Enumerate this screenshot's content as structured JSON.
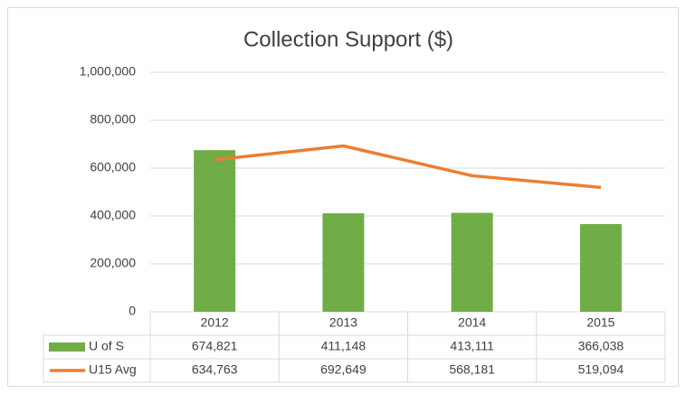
{
  "chart_data": {
    "type": "bar-line-table",
    "title": "Collection Support ($)",
    "categories": [
      "2012",
      "2013",
      "2014",
      "2015"
    ],
    "series": [
      {
        "name": "U of S",
        "type": "bar",
        "color": "#70ad47",
        "values": [
          674821,
          411148,
          413111,
          366038
        ],
        "value_labels": [
          "674,821",
          "411,148",
          "413,111",
          "366,038"
        ]
      },
      {
        "name": "U15 Avg",
        "type": "line",
        "color": "#ed7d31",
        "values": [
          634763,
          692649,
          568181,
          519094
        ],
        "value_labels": [
          "634,763",
          "692,649",
          "568,181",
          "519,094"
        ]
      }
    ],
    "ylim": [
      0,
      1000000
    ],
    "yticks": [
      0,
      {
        "value": 200000,
        "label": "200,000"
      },
      {
        "value": 400000,
        "label": "400,000"
      },
      {
        "value": 600000,
        "label": "600,000"
      },
      {
        "value": 800000,
        "label": "800,000"
      },
      {
        "value": 1000000,
        "label": "1,000,000"
      }
    ],
    "grid": true
  }
}
